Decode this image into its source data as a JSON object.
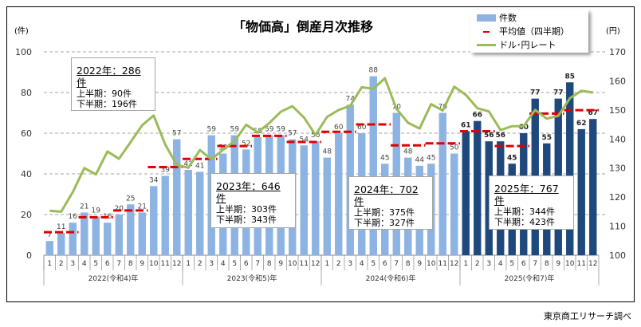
{
  "chart_data": {
    "type": "bar+line",
    "title": "「物価高」倒産月次推移",
    "left_axis": {
      "unit": "(件)",
      "ylim": [
        0,
        100
      ],
      "ticks": [
        0,
        20,
        40,
        60,
        80,
        100
      ]
    },
    "right_axis": {
      "unit": "(円)",
      "ylim": [
        100,
        170
      ],
      "ticks": [
        100,
        110,
        120,
        130,
        140,
        150,
        160,
        170
      ]
    },
    "grid": true,
    "legend_position": "top-right",
    "months": [
      "1",
      "2",
      "3",
      "4",
      "5",
      "6",
      "7",
      "8",
      "9",
      "10",
      "11",
      "12"
    ],
    "years": [
      {
        "label": "2022(令和4)年",
        "counts": [
          7,
          11,
          16,
          21,
          19,
          16,
          20,
          25,
          21,
          34,
          39,
          57
        ],
        "rate": [
          115.3,
          115.0,
          121.7,
          130.0,
          127.8,
          135.7,
          133.2,
          138.9,
          144.7,
          148.1,
          138.1,
          131.1
        ]
      },
      {
        "label": "2023(令和5)年",
        "counts": [
          42,
          41,
          59,
          50,
          59,
          52,
          58,
          59,
          59,
          57,
          54,
          56
        ],
        "rate": [
          130.1,
          136.2,
          133.0,
          136.3,
          139.3,
          144.9,
          142.3,
          145.5,
          149.4,
          151.3,
          147.4,
          141.4
        ]
      },
      {
        "label": "2024(令和6)年",
        "counts": [
          48,
          60,
          74,
          60,
          88,
          45,
          70,
          48,
          44,
          45,
          70,
          50
        ],
        "rate": [
          147.6,
          150.0,
          151.4,
          157.8,
          157.3,
          160.9,
          150.4,
          145.6,
          143.6,
          152.0,
          149.8,
          158.0
        ]
      },
      {
        "label": "2025(令和7)年",
        "counts": [
          61,
          66,
          56,
          56,
          45,
          60,
          77,
          55,
          77,
          85,
          62,
          67
        ],
        "rate": [
          155.2,
          150.6,
          149.5,
          143.1,
          144.4,
          144.4,
          150.0,
          147.0,
          148.0,
          154.0,
          156.6,
          156.0
        ]
      }
    ],
    "series": [
      {
        "name": "件数",
        "type": "bar",
        "color": "#8db3e2",
        "highlight_color": "#1f497d"
      },
      {
        "name": "平均値（四半期）",
        "type": "quarter-average",
        "color": "#e00000"
      },
      {
        "name": "ドル･円レート",
        "type": "line",
        "axis": "right",
        "color": "#9bbb59"
      }
    ]
  },
  "annotations": [
    {
      "heading": "2022年：286件",
      "first_half": "上半期：90件",
      "second_half": "下半期：196件"
    },
    {
      "heading": "2023年：646件",
      "first_half": "上半期：303件",
      "second_half": "下半期：343件"
    },
    {
      "heading": "2024年：702件",
      "first_half": "上半期：375件",
      "second_half": "下半期：327件"
    },
    {
      "heading": "2025年：767件",
      "first_half": "上半期：344件",
      "second_half": "下半期：423件"
    }
  ],
  "source": "東京商工リサーチ調べ"
}
